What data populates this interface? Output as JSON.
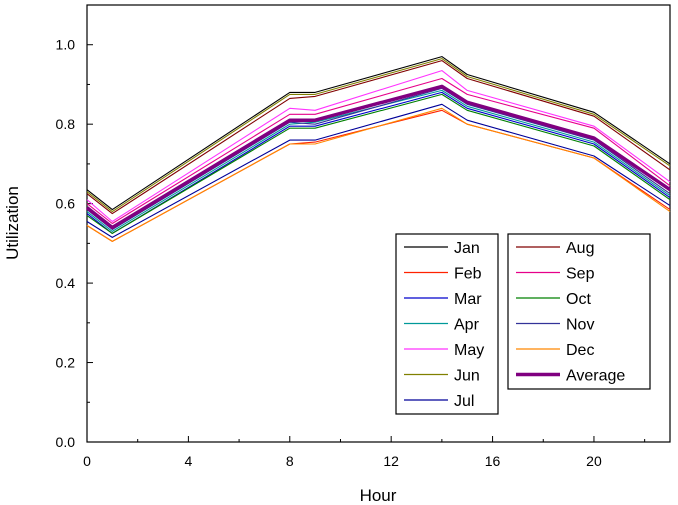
{
  "chart_data": {
    "type": "line",
    "title": "",
    "xlabel": "Hour",
    "ylabel": "Utilization",
    "xlim": [
      0,
      23
    ],
    "ylim": [
      0,
      1.1
    ],
    "x_ticks": [
      0,
      4,
      8,
      12,
      16,
      20
    ],
    "x_tick_labels": [
      "0",
      "4",
      "8",
      "12",
      "16",
      "20"
    ],
    "y_ticks": [
      0,
      0.2,
      0.4,
      0.6,
      0.8,
      1.0
    ],
    "y_tick_labels": [
      "0.0",
      "0.2",
      "0.4",
      "0.6",
      "0.8",
      "1.0"
    ],
    "grid": false,
    "legend_placement": "bottom-right, two columns",
    "x": [
      0,
      1,
      8,
      9,
      14,
      15,
      20,
      23
    ],
    "series": [
      {
        "name": "Jan",
        "color": "#000000",
        "values": [
          0.635,
          0.585,
          0.88,
          0.88,
          0.97,
          0.925,
          0.83,
          0.7
        ]
      },
      {
        "name": "Feb",
        "color": "#ff2200",
        "values": [
          0.545,
          0.505,
          0.75,
          0.755,
          0.835,
          0.8,
          0.715,
          0.585
        ]
      },
      {
        "name": "Mar",
        "color": "#0000cc",
        "values": [
          0.575,
          0.525,
          0.795,
          0.795,
          0.88,
          0.84,
          0.75,
          0.615
        ]
      },
      {
        "name": "Apr",
        "color": "#009999",
        "values": [
          0.58,
          0.53,
          0.8,
          0.805,
          0.885,
          0.845,
          0.755,
          0.62
        ]
      },
      {
        "name": "May",
        "color": "#ff33ff",
        "values": [
          0.61,
          0.555,
          0.84,
          0.835,
          0.935,
          0.885,
          0.795,
          0.655
        ]
      },
      {
        "name": "Jun",
        "color": "#808000",
        "values": [
          0.63,
          0.58,
          0.875,
          0.875,
          0.965,
          0.92,
          0.825,
          0.695
        ]
      },
      {
        "name": "Jul",
        "color": "#000099",
        "values": [
          0.555,
          0.515,
          0.76,
          0.76,
          0.85,
          0.81,
          0.72,
          0.595
        ]
      },
      {
        "name": "Aug",
        "color": "#800000",
        "values": [
          0.625,
          0.575,
          0.865,
          0.87,
          0.96,
          0.915,
          0.82,
          0.685
        ]
      },
      {
        "name": "Sep",
        "color": "#e6008a",
        "values": [
          0.6,
          0.55,
          0.825,
          0.825,
          0.915,
          0.875,
          0.79,
          0.645
        ]
      },
      {
        "name": "Oct",
        "color": "#008000",
        "values": [
          0.57,
          0.525,
          0.79,
          0.79,
          0.875,
          0.835,
          0.745,
          0.61
        ]
      },
      {
        "name": "Nov",
        "color": "#333399",
        "values": [
          0.585,
          0.535,
          0.805,
          0.8,
          0.89,
          0.85,
          0.76,
          0.625
        ]
      },
      {
        "name": "Dec",
        "color": "#ff8800",
        "values": [
          0.545,
          0.505,
          0.75,
          0.75,
          0.84,
          0.8,
          0.715,
          0.58
        ]
      },
      {
        "name": "Average",
        "color": "#800080",
        "bold": true,
        "values": [
          0.59,
          0.54,
          0.81,
          0.81,
          0.895,
          0.855,
          0.765,
          0.635
        ]
      }
    ]
  }
}
